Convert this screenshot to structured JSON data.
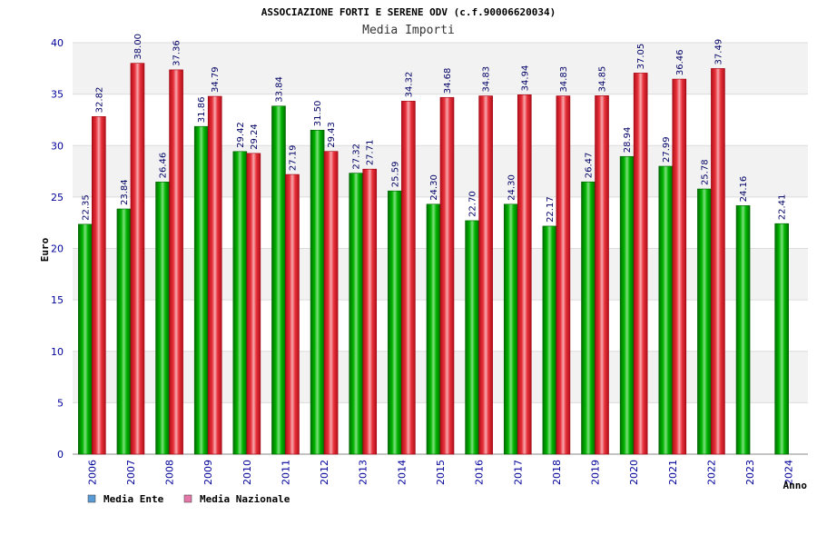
{
  "chart_data": {
    "type": "bar",
    "title": "ASSOCIAZIONE FORTI E SERENE ODV (c.f.90006620034)",
    "subtitle": "Media Importi",
    "ylabel": "Euro",
    "xlabel": "Anno",
    "ylim": [
      0,
      40
    ],
    "yticks": [
      0,
      5,
      10,
      15,
      20,
      25,
      30,
      35,
      40
    ],
    "grid": true,
    "legend_position": "bottom-left",
    "categories": [
      "2006",
      "2007",
      "2008",
      "2009",
      "2010",
      "2011",
      "2012",
      "2013",
      "2014",
      "2015",
      "2016",
      "2017",
      "2018",
      "2019",
      "2020",
      "2021",
      "2022",
      "2023",
      "2024"
    ],
    "series": [
      {
        "name": "Media Ente",
        "color": "#00a000",
        "legend_color": "#5b9bd5",
        "values": [
          22.35,
          23.84,
          26.46,
          31.86,
          29.42,
          33.84,
          31.5,
          27.32,
          25.59,
          24.3,
          22.7,
          24.3,
          22.17,
          26.47,
          28.94,
          27.99,
          25.78,
          24.16,
          22.41
        ],
        "labels": [
          "22.35",
          "23.84",
          "26.46",
          "31.86",
          "29.42",
          "33.84",
          "31.50",
          "27.32",
          "25.59",
          "24.30",
          "22.70",
          "24.30",
          "22.17",
          "26.47",
          "28.94",
          "27.99",
          "25.78",
          "24.16",
          "22.41"
        ]
      },
      {
        "name": "Media Nazionale",
        "color": "#e0202a",
        "legend_color": "#e377a7",
        "values": [
          32.82,
          38.0,
          37.36,
          34.79,
          29.24,
          27.19,
          29.43,
          27.71,
          34.32,
          34.68,
          34.83,
          34.94,
          34.83,
          34.85,
          37.05,
          36.46,
          37.49,
          null,
          null
        ],
        "labels": [
          "32.82",
          "38.00",
          "37.36",
          "34.79",
          "29.24",
          "27.19",
          "29.43",
          "27.71",
          "34.32",
          "34.68",
          "34.83",
          "34.94",
          "34.83",
          "34.85",
          "37.05",
          "36.46",
          "37.49",
          "",
          ""
        ]
      }
    ]
  }
}
